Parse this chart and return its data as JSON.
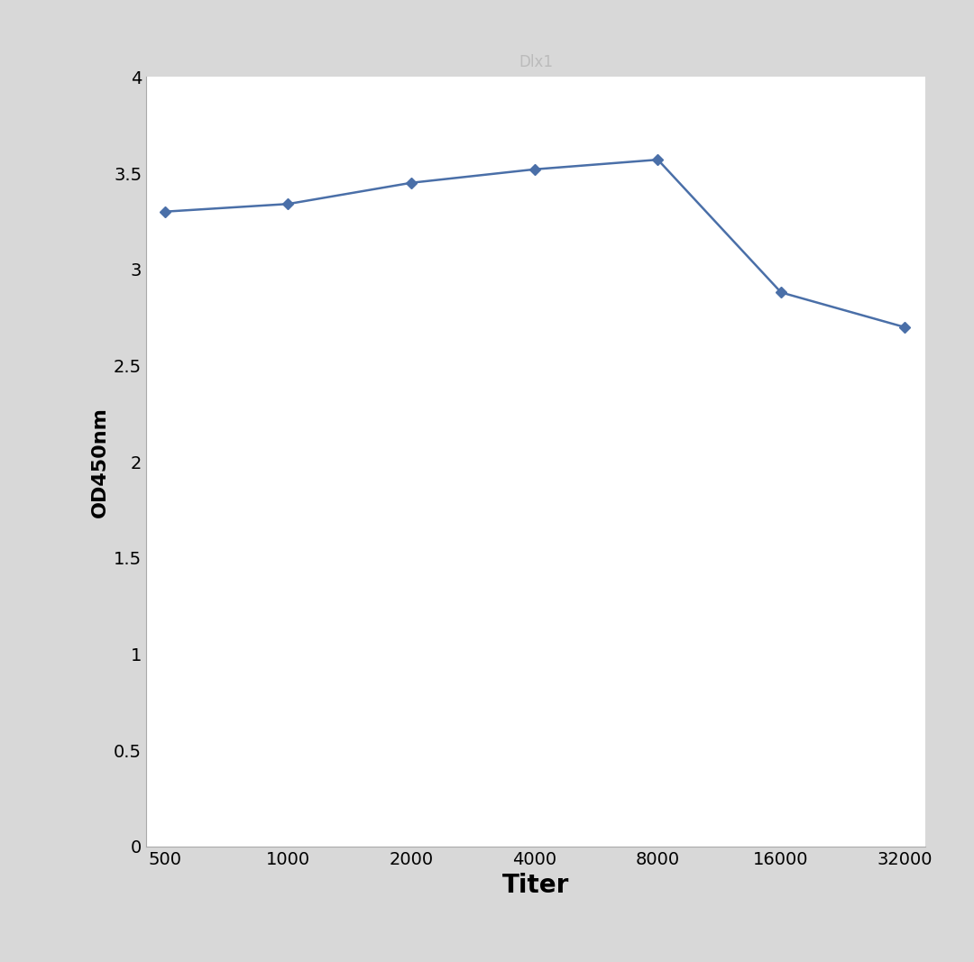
{
  "x_values": [
    500,
    1000,
    2000,
    4000,
    8000,
    16000,
    32000
  ],
  "y_values": [
    3.3,
    3.34,
    3.45,
    3.52,
    3.57,
    2.88,
    2.7
  ],
  "line_color": "#4a6fa8",
  "marker_style": "D",
  "marker_size": 6,
  "marker_facecolor": "#4a6fa8",
  "line_width": 1.8,
  "xlabel": "Titer",
  "ylabel": "OD450nm",
  "xlim_left": 500,
  "xlim_right": 32000,
  "ylim_bottom": 0,
  "ylim_top": 4.0,
  "yticks": [
    0,
    0.5,
    1,
    1.5,
    2,
    2.5,
    3,
    3.5,
    4
  ],
  "xtick_labels": [
    "500",
    "1000",
    "2000",
    "4000",
    "8000",
    "16000",
    "32000"
  ],
  "figure_facecolor": "#d8d8d8",
  "axes_facecolor": "#ffffff",
  "xlabel_fontsize": 20,
  "ylabel_fontsize": 16,
  "tick_fontsize": 14,
  "title_text": "Dlx1",
  "title_fontsize": 12,
  "title_color": "#bbbbbb",
  "spine_color": "#aaaaaa"
}
